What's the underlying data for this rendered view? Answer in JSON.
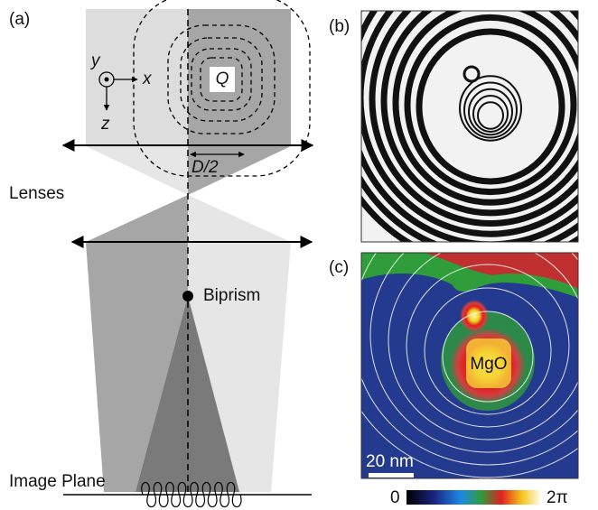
{
  "panel_a": {
    "label": "(a)",
    "axis_y": "y",
    "axis_x": "x",
    "axis_z": "z",
    "source": "Q",
    "half_width": "D/2",
    "lenses": "Lenses",
    "biprism": "Biprism",
    "image_plane": "Image Plane"
  },
  "panel_b": {
    "label": "(b)"
  },
  "panel_c": {
    "label": "(c)",
    "particle": "MgO",
    "scale_bar": "20 nm",
    "colorbar_min": "0",
    "colorbar_max": "2π"
  }
}
